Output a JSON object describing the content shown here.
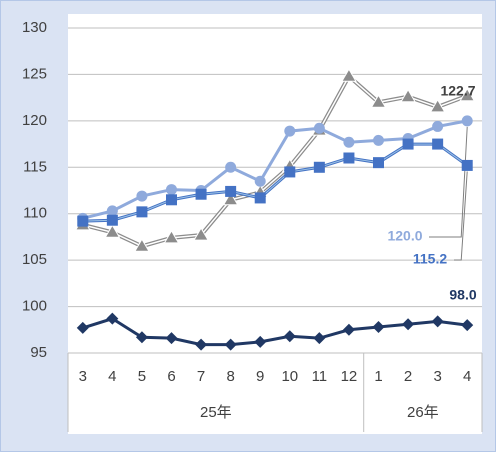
{
  "chart_data": {
    "type": "line",
    "categories": [
      "3",
      "4",
      "5",
      "6",
      "7",
      "8",
      "9",
      "10",
      "11",
      "12",
      "1",
      "2",
      "3",
      "4"
    ],
    "category_groups": [
      "25年",
      null,
      null,
      null,
      null,
      null,
      null,
      null,
      null,
      null,
      "26年",
      null,
      null,
      null
    ],
    "ylim": [
      95,
      130
    ],
    "yticks": [
      95,
      100,
      105,
      110,
      115,
      120,
      125,
      130
    ],
    "grid": true,
    "series": [
      {
        "color": "#8c8c8c",
        "marker": "triangle",
        "values": [
          108.8,
          108.0,
          106.5,
          107.4,
          107.7,
          111.5,
          112.3,
          115.1,
          119.0,
          124.8,
          122.0,
          122.6,
          121.5,
          122.7
        ],
        "value_labels": [
          null,
          null,
          null,
          null,
          null,
          null,
          null,
          null,
          null,
          null,
          null,
          null,
          null,
          "122.7"
        ]
      },
      {
        "color": "#8faadc",
        "marker": "circle",
        "values": [
          109.5,
          110.3,
          111.9,
          112.6,
          112.5,
          115.0,
          113.5,
          118.9,
          119.2,
          117.7,
          117.9,
          118.1,
          119.4,
          120.0
        ],
        "value_labels": [
          null,
          null,
          null,
          null,
          null,
          null,
          null,
          null,
          null,
          null,
          null,
          null,
          null,
          "120.0"
        ]
      },
      {
        "color": "#4472c4",
        "marker": "square",
        "values": [
          109.2,
          109.3,
          110.2,
          111.5,
          112.1,
          112.4,
          111.7,
          114.5,
          115.0,
          116.0,
          115.5,
          117.5,
          117.5,
          115.2
        ],
        "value_labels": [
          null,
          null,
          null,
          null,
          null,
          null,
          null,
          null,
          null,
          null,
          null,
          null,
          null,
          "115.2"
        ]
      },
      {
        "color": "#203864",
        "marker": "diamond",
        "values": [
          97.7,
          98.7,
          96.7,
          96.6,
          95.9,
          95.9,
          96.2,
          96.8,
          96.6,
          97.5,
          97.8,
          98.1,
          98.4,
          98.0
        ],
        "value_labels": [
          null,
          null,
          null,
          null,
          null,
          null,
          null,
          null,
          null,
          null,
          null,
          null,
          null,
          "98.0"
        ]
      }
    ]
  }
}
